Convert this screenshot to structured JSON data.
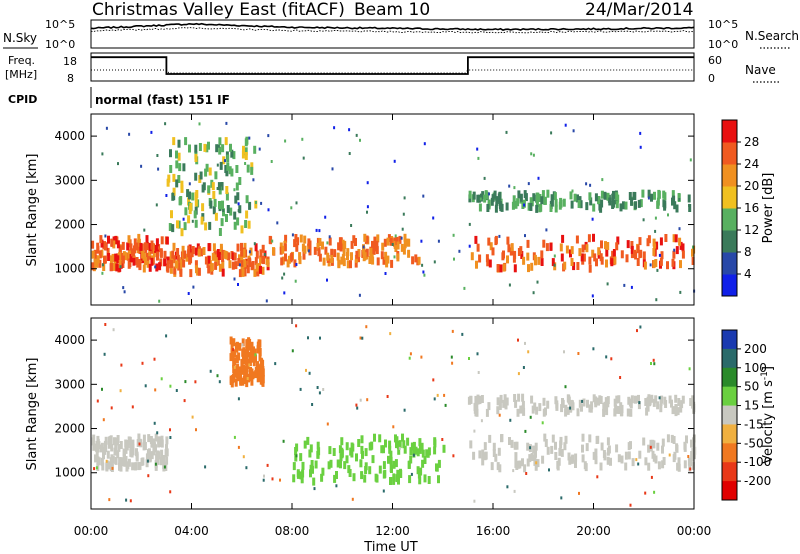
{
  "header": {
    "station": "Christmas Valley East (fitACF)",
    "beam": "Beam 10",
    "date": "24/Mar/2014"
  },
  "noise_panel": {
    "left_label": "N.Sky",
    "left_ticks": [
      "10^5",
      "10^0"
    ],
    "right_ticks": [
      "10^5",
      "10^0"
    ],
    "right_label": "N.Search"
  },
  "freq_panel": {
    "label_line1": "Freq.",
    "label_line2": "[MHz]",
    "left_ticks": [
      "18",
      "8"
    ],
    "right_ticks": [
      "60",
      "0"
    ],
    "right_label": "Nave"
  },
  "cpid_panel": {
    "label": "CPID",
    "mode": "normal (fast) 151 IF"
  },
  "axes": {
    "ylabel": "Slant Range [km]",
    "y_ticks": [
      "1000",
      "2000",
      "3000",
      "4000"
    ],
    "xlabel": "Time UT",
    "x_ticks": [
      "00:00",
      "04:00",
      "08:00",
      "12:00",
      "16:00",
      "20:00",
      "00:00"
    ]
  },
  "power_colorbar": {
    "label": "Power [dB]",
    "ticks": [
      "4",
      "8",
      "12",
      "16",
      "20",
      "24",
      "28"
    ],
    "colors": [
      "#1020e8",
      "#2848a8",
      "#3a7a5a",
      "#58b060",
      "#f0c020",
      "#f09020",
      "#f05a20",
      "#e81010"
    ]
  },
  "velocity_colorbar": {
    "label": "Velocity [m s",
    "label_sup": "-1",
    "label_end": "]",
    "ticks": [
      "200",
      "100",
      "50",
      "15",
      "-15",
      "-50",
      "-100",
      "-200"
    ],
    "colors": [
      "#1a3ab0",
      "#2a6a6a",
      "#2a8a2a",
      "#6ad040",
      "#c8c8c0",
      "#f0b040",
      "#f07820",
      "#e83818",
      "#e00000"
    ],
    "ground_scatter": "#c8c8c0"
  },
  "chart_data": [
    {
      "type": "line",
      "title": "N.Sky / N.Search",
      "ylim": [
        "10^0",
        "10^5"
      ],
      "x": [
        0,
        4,
        8,
        12,
        16,
        20,
        24
      ],
      "series": [
        {
          "name": "N.Sky",
          "values": [
            3.5,
            4.3,
            3.7,
            3.5,
            3.3,
            3.4,
            3.6
          ]
        },
        {
          "name": "N.Search",
          "values": [
            3.0,
            3.6,
            3.1,
            2.9,
            2.8,
            2.9,
            3.0
          ]
        }
      ]
    },
    {
      "type": "line",
      "title": "Freq.",
      "xlim": [
        0,
        24
      ],
      "ylim": [
        8,
        18
      ],
      "x": [
        0,
        3,
        3,
        15,
        15,
        24
      ],
      "series": [
        {
          "name": "Freq.",
          "values": [
            16.5,
            16.5,
            10.5,
            10.5,
            16.5,
            16.5
          ]
        }
      ]
    },
    {
      "type": "heatmap",
      "title": "Power [dB]",
      "xlabel": "Time UT",
      "ylabel": "Slant Range [km]",
      "xlim": [
        0,
        24
      ],
      "ylim": [
        180,
        4500
      ],
      "features": [
        {
          "t0": 0.0,
          "t1": 3.0,
          "r0": 1000,
          "r1": 1700,
          "power": 26
        },
        {
          "t0": 3.0,
          "t1": 7.0,
          "r0": 900,
          "r1": 1500,
          "power": 25
        },
        {
          "t0": 7.0,
          "t1": 13.0,
          "r0": 1100,
          "r1": 1700,
          "power": 24
        },
        {
          "t0": 15.0,
          "t1": 24.0,
          "r0": 1000,
          "r1": 1700,
          "power": 26
        },
        {
          "t0": 3.0,
          "t1": 6.5,
          "r0": 1800,
          "r1": 3900,
          "power": 14
        },
        {
          "t0": 15.0,
          "t1": 24.0,
          "r0": 2350,
          "r1": 2700,
          "power": 12
        }
      ]
    },
    {
      "type": "heatmap",
      "title": "Velocity",
      "xlabel": "Time UT",
      "ylabel": "Slant Range [km]",
      "xlim": [
        0,
        24
      ],
      "ylim": [
        180,
        4500
      ],
      "features": [
        {
          "t0": 0.0,
          "t1": 3.0,
          "r0": 1100,
          "r1": 1800,
          "velocity": 0
        },
        {
          "t0": 8.0,
          "t1": 14.0,
          "r0": 800,
          "r1": 1800,
          "velocity": 40
        },
        {
          "t0": 5.5,
          "t1": 6.8,
          "r0": 3000,
          "r1": 4000,
          "velocity": -80
        },
        {
          "t0": 15.0,
          "t1": 24.0,
          "r0": 1100,
          "r1": 1800,
          "velocity": 0
        },
        {
          "t0": 15.0,
          "t1": 24.0,
          "r0": 2350,
          "r1": 2700,
          "velocity": 0
        }
      ]
    }
  ]
}
